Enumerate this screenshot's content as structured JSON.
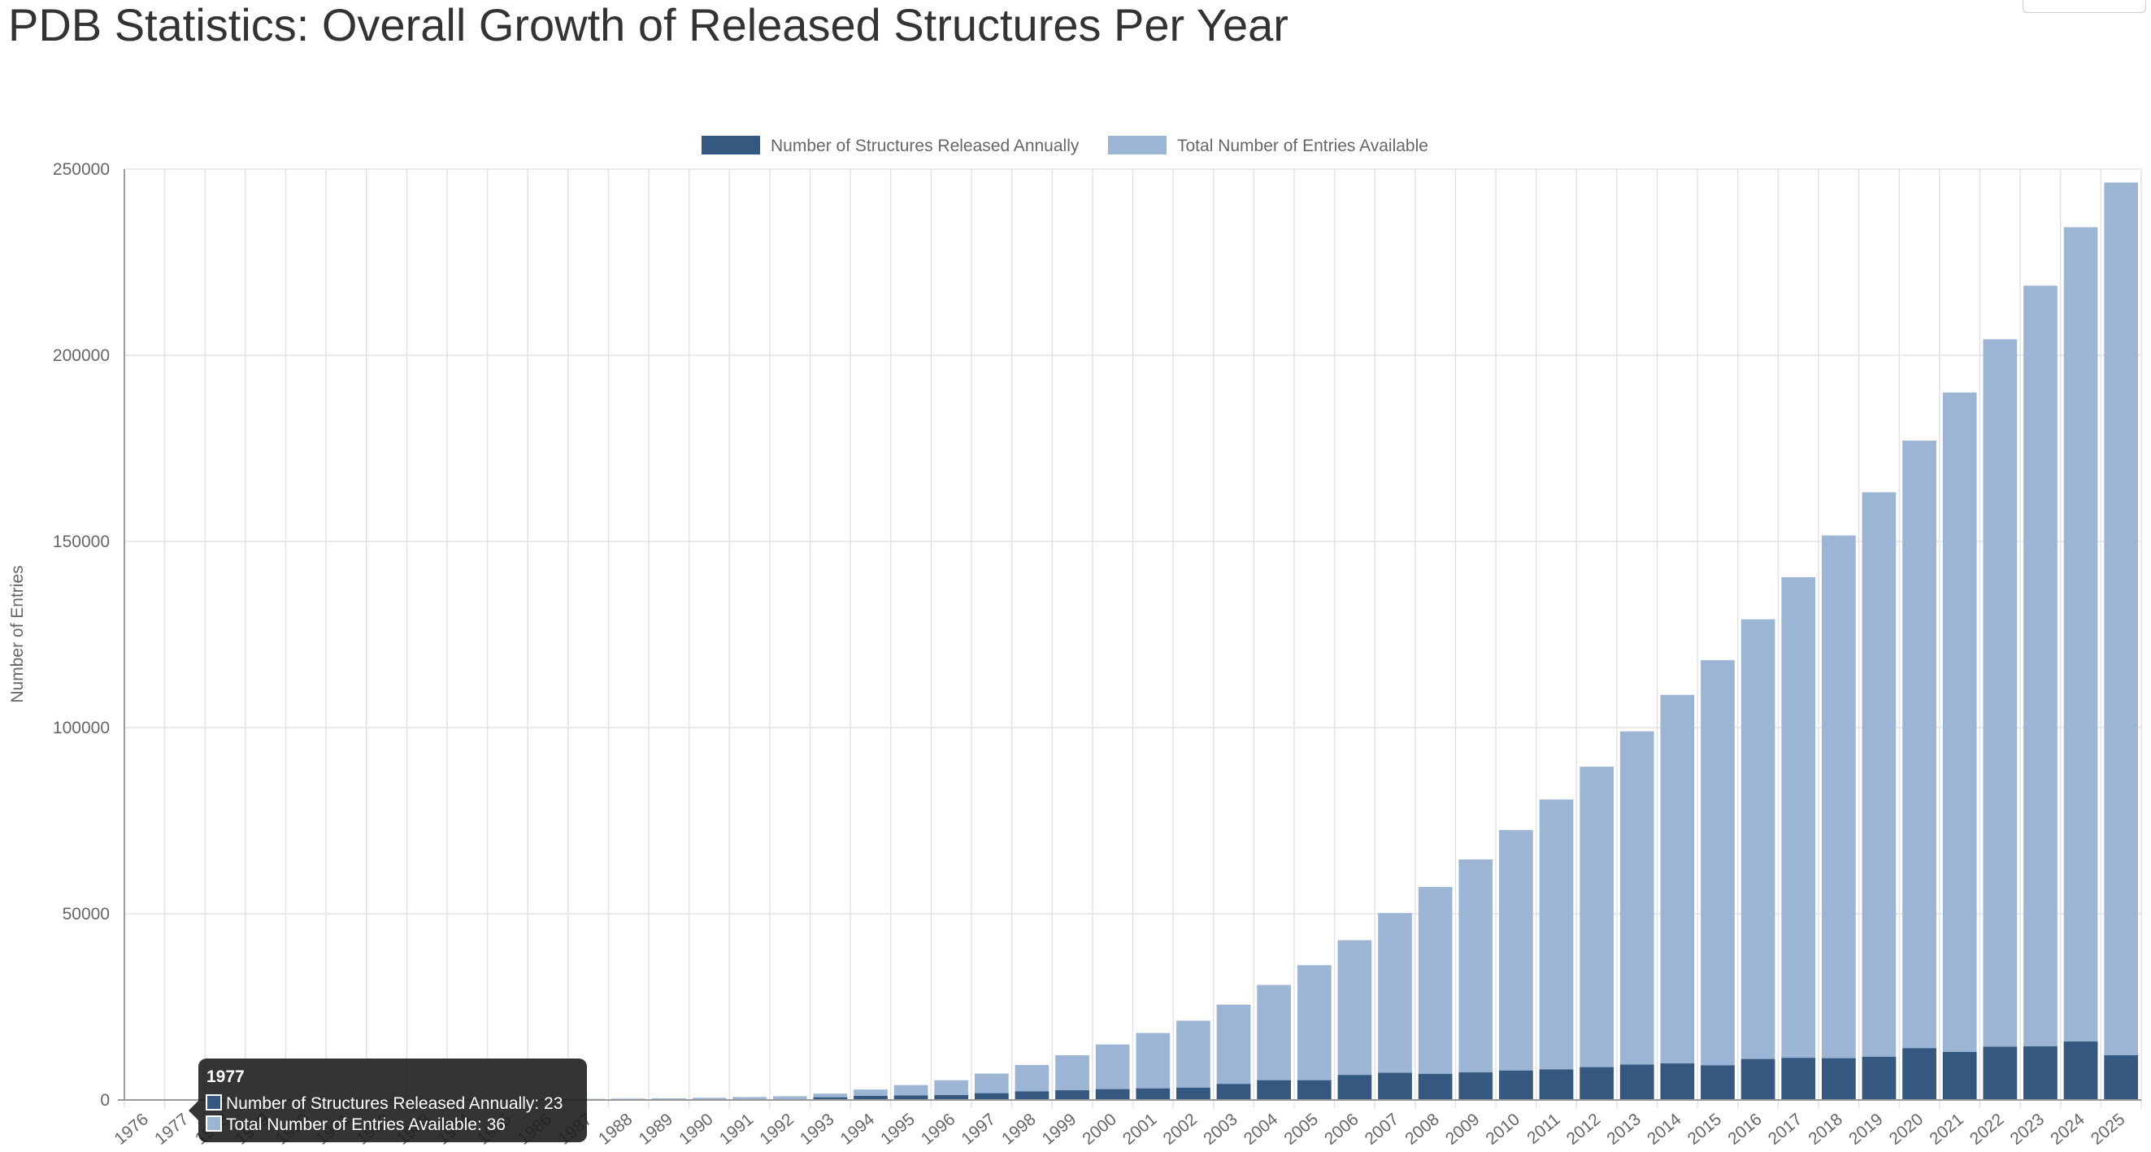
{
  "page": {
    "title": "PDB Statistics: Overall Growth of Released Structures Per Year"
  },
  "chart_data": {
    "type": "bar",
    "stacking": "overlapped",
    "title": "PDB Statistics: Overall Growth of Released Structures Per Year",
    "xlabel": "",
    "ylabel": "Number of Entries",
    "ylim": [
      0,
      250000
    ],
    "yticks": [
      0,
      50000,
      100000,
      150000,
      200000,
      250000
    ],
    "grid": true,
    "legend_position": "top-center",
    "categories": [
      "1976",
      "1977",
      "1978",
      "1979",
      "1980",
      "1981",
      "1982",
      "1983",
      "1984",
      "1985",
      "1986",
      "1987",
      "1988",
      "1989",
      "1990",
      "1991",
      "1992",
      "1993",
      "1994",
      "1995",
      "1996",
      "1997",
      "1998",
      "1999",
      "2000",
      "2001",
      "2002",
      "2003",
      "2004",
      "2005",
      "2006",
      "2007",
      "2008",
      "2009",
      "2010",
      "2011",
      "2012",
      "2013",
      "2014",
      "2015",
      "2016",
      "2017",
      "2018",
      "2019",
      "2020",
      "2021",
      "2022",
      "2023",
      "2024",
      "2025"
    ],
    "series": [
      {
        "name": "Number of Structures Released Annually",
        "color": "#34587f",
        "values": [
          13,
          23,
          14,
          14,
          15,
          24,
          30,
          35,
          25,
          30,
          40,
          40,
          60,
          70,
          150,
          200,
          220,
          700,
          1100,
          1200,
          1300,
          1800,
          2300,
          2600,
          2900,
          3100,
          3300,
          4300,
          5300,
          5300,
          6700,
          7300,
          7000,
          7400,
          7900,
          8200,
          8800,
          9500,
          9800,
          9300,
          11000,
          11300,
          11200,
          11600,
          13900,
          12900,
          14300,
          14400,
          15700,
          12000
        ]
      },
      {
        "name": "Total Number of Entries Available",
        "color": "#9cb5d4",
        "values": [
          13,
          36,
          50,
          64,
          79,
          103,
          133,
          168,
          193,
          223,
          263,
          303,
          363,
          433,
          583,
          783,
          1003,
          1700,
          2800,
          4000,
          5300,
          7100,
          9400,
          12000,
          14900,
          18000,
          21300,
          25600,
          30900,
          36200,
          42900,
          50200,
          57200,
          64600,
          72500,
          80700,
          89500,
          99000,
          108800,
          118100,
          129100,
          140400,
          151600,
          163200,
          177100,
          190000,
          204300,
          218700,
          234400,
          246400
        ]
      }
    ],
    "tooltip": {
      "category": "1977",
      "lines": [
        "Number of Structures Released Annually: 23",
        "Total Number of Entries Available: 36"
      ]
    }
  }
}
